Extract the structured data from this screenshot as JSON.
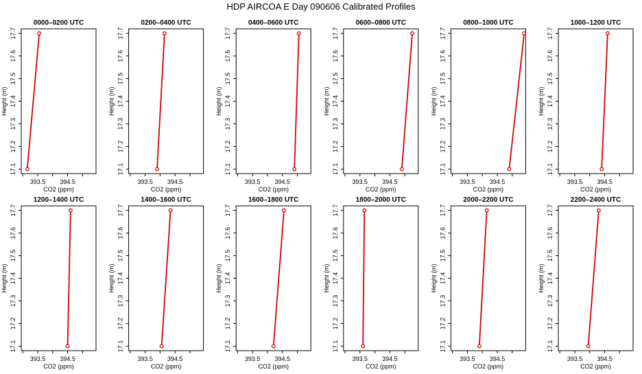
{
  "figure": {
    "title": "HDP AIRCOA E  Day 090606  Calibrated Profiles"
  },
  "chart_data": [
    {
      "type": "line",
      "title": "0000–0200 UTC",
      "xlabel": "CO2 (ppm)",
      "ylabel": "Height (m)",
      "xlim": [
        392.95,
        395.45
      ],
      "ylim": [
        17.08,
        17.72
      ],
      "xticks": [
        393.5,
        394.5
      ],
      "xtick_minor": [
        393.0,
        394.0,
        395.0
      ],
      "yticks": [
        17.1,
        17.2,
        17.3,
        17.4,
        17.5,
        17.6,
        17.7
      ],
      "series": [
        {
          "x": [
            393.15,
            393.55
          ],
          "y": [
            17.1,
            17.7
          ]
        }
      ],
      "grid": false,
      "line_color": "#d40000"
    },
    {
      "type": "line",
      "title": "0200–0400 UTC",
      "xlabel": "CO2 (ppm)",
      "ylabel": "Height (m)",
      "xlim": [
        392.95,
        395.45
      ],
      "ylim": [
        17.08,
        17.72
      ],
      "xticks": [
        393.5,
        394.5
      ],
      "xtick_minor": [
        393.0,
        394.0,
        395.0
      ],
      "yticks": [
        17.1,
        17.2,
        17.3,
        17.4,
        17.5,
        17.6,
        17.7
      ],
      "series": [
        {
          "x": [
            393.9,
            394.15
          ],
          "y": [
            17.1,
            17.7
          ]
        }
      ],
      "grid": false,
      "line_color": "#d40000"
    },
    {
      "type": "line",
      "title": "0400–0600 UTC",
      "xlabel": "CO2 (ppm)",
      "ylabel": "Height (m)",
      "xlim": [
        392.95,
        395.45
      ],
      "ylim": [
        17.08,
        17.72
      ],
      "xticks": [
        393.5,
        394.5
      ],
      "xtick_minor": [
        393.0,
        394.0,
        395.0
      ],
      "yticks": [
        17.1,
        17.2,
        17.3,
        17.4,
        17.5,
        17.6,
        17.7
      ],
      "series": [
        {
          "x": [
            394.9,
            395.05
          ],
          "y": [
            17.1,
            17.7
          ]
        }
      ],
      "grid": false,
      "line_color": "#d40000"
    },
    {
      "type": "line",
      "title": "0600–0800 UTC",
      "xlabel": "CO2 (ppm)",
      "ylabel": "Height (m)",
      "xlim": [
        392.95,
        395.45
      ],
      "ylim": [
        17.08,
        17.72
      ],
      "xticks": [
        393.5,
        394.5
      ],
      "xtick_minor": [
        393.0,
        394.0,
        395.0
      ],
      "yticks": [
        17.1,
        17.2,
        17.3,
        17.4,
        17.5,
        17.6,
        17.7
      ],
      "series": [
        {
          "x": [
            394.9,
            395.25
          ],
          "y": [
            17.1,
            17.7
          ]
        }
      ],
      "grid": false,
      "line_color": "#d40000"
    },
    {
      "type": "line",
      "title": "0800–1000 UTC",
      "xlabel": "CO2 (ppm)",
      "ylabel": "Height (m)",
      "xlim": [
        392.95,
        395.45
      ],
      "ylim": [
        17.08,
        17.72
      ],
      "xticks": [
        393.5,
        394.5
      ],
      "xtick_minor": [
        393.0,
        394.0,
        395.0
      ],
      "yticks": [
        17.1,
        17.2,
        17.3,
        17.4,
        17.5,
        17.6,
        17.7
      ],
      "series": [
        {
          "x": [
            394.9,
            395.4
          ],
          "y": [
            17.1,
            17.7
          ]
        }
      ],
      "grid": false,
      "line_color": "#d40000"
    },
    {
      "type": "line",
      "title": "1000–1200 UTC",
      "xlabel": "CO2 (ppm)",
      "ylabel": "Height (m)",
      "xlim": [
        392.95,
        395.45
      ],
      "ylim": [
        17.08,
        17.72
      ],
      "xticks": [
        393.5,
        394.5
      ],
      "xtick_minor": [
        393.0,
        394.0,
        395.0
      ],
      "yticks": [
        17.1,
        17.2,
        17.3,
        17.4,
        17.5,
        17.6,
        17.7
      ],
      "series": [
        {
          "x": [
            394.4,
            394.6
          ],
          "y": [
            17.1,
            17.7
          ]
        }
      ],
      "grid": false,
      "line_color": "#d40000"
    },
    {
      "type": "line",
      "title": "1200–1400 UTC",
      "xlabel": "CO2 (ppm)",
      "ylabel": "Height (m)",
      "xlim": [
        392.95,
        395.45
      ],
      "ylim": [
        17.08,
        17.72
      ],
      "xticks": [
        393.5,
        394.5
      ],
      "xtick_minor": [
        393.0,
        394.0,
        395.0
      ],
      "yticks": [
        17.1,
        17.2,
        17.3,
        17.4,
        17.5,
        17.6,
        17.7
      ],
      "series": [
        {
          "x": [
            394.5,
            394.6
          ],
          "y": [
            17.1,
            17.7
          ]
        }
      ],
      "grid": false,
      "line_color": "#d40000"
    },
    {
      "type": "line",
      "title": "1400–1600 UTC",
      "xlabel": "CO2 (ppm)",
      "ylabel": "Height (m)",
      "xlim": [
        392.95,
        395.45
      ],
      "ylim": [
        17.08,
        17.72
      ],
      "xticks": [
        393.5,
        394.5
      ],
      "xtick_minor": [
        393.0,
        394.0,
        395.0
      ],
      "yticks": [
        17.1,
        17.2,
        17.3,
        17.4,
        17.5,
        17.6,
        17.7
      ],
      "series": [
        {
          "x": [
            394.05,
            394.35
          ],
          "y": [
            17.1,
            17.7
          ]
        }
      ],
      "grid": false,
      "line_color": "#d40000"
    },
    {
      "type": "line",
      "title": "1600–1800 UTC",
      "xlabel": "CO2 (ppm)",
      "ylabel": "Height (m)",
      "xlim": [
        392.95,
        395.45
      ],
      "ylim": [
        17.08,
        17.72
      ],
      "xticks": [
        393.5,
        394.5
      ],
      "xtick_minor": [
        393.0,
        394.0,
        395.0
      ],
      "yticks": [
        17.1,
        17.2,
        17.3,
        17.4,
        17.5,
        17.6,
        17.7
      ],
      "series": [
        {
          "x": [
            394.2,
            394.55
          ],
          "y": [
            17.1,
            17.7
          ]
        }
      ],
      "grid": false,
      "line_color": "#d40000"
    },
    {
      "type": "line",
      "title": "1800–2000 UTC",
      "xlabel": "CO2 (ppm)",
      "ylabel": "Height (m)",
      "xlim": [
        392.95,
        395.45
      ],
      "ylim": [
        17.08,
        17.72
      ],
      "xticks": [
        393.5,
        394.5
      ],
      "xtick_minor": [
        393.0,
        394.0,
        395.0
      ],
      "yticks": [
        17.1,
        17.2,
        17.3,
        17.4,
        17.5,
        17.6,
        17.7
      ],
      "series": [
        {
          "x": [
            393.6,
            393.65
          ],
          "y": [
            17.1,
            17.7
          ]
        }
      ],
      "grid": false,
      "line_color": "#d40000"
    },
    {
      "type": "line",
      "title": "2000–2200 UTC",
      "xlabel": "CO2 (ppm)",
      "ylabel": "Height (m)",
      "xlim": [
        392.95,
        395.45
      ],
      "ylim": [
        17.08,
        17.72
      ],
      "xticks": [
        393.5,
        394.5
      ],
      "xtick_minor": [
        393.0,
        394.0,
        395.0
      ],
      "yticks": [
        17.1,
        17.2,
        17.3,
        17.4,
        17.5,
        17.6,
        17.7
      ],
      "series": [
        {
          "x": [
            393.9,
            394.15
          ],
          "y": [
            17.1,
            17.7
          ]
        }
      ],
      "grid": false,
      "line_color": "#d40000"
    },
    {
      "type": "line",
      "title": "2200–2400 UTC",
      "xlabel": "CO2 (ppm)",
      "ylabel": "Height (m)",
      "xlim": [
        392.95,
        395.45
      ],
      "ylim": [
        17.08,
        17.72
      ],
      "xticks": [
        393.5,
        394.5
      ],
      "xtick_minor": [
        393.0,
        394.0,
        395.0
      ],
      "yticks": [
        17.1,
        17.2,
        17.3,
        17.4,
        17.5,
        17.6,
        17.7
      ],
      "series": [
        {
          "x": [
            393.95,
            394.3
          ],
          "y": [
            17.1,
            17.7
          ]
        }
      ],
      "grid": false,
      "line_color": "#d40000"
    }
  ]
}
